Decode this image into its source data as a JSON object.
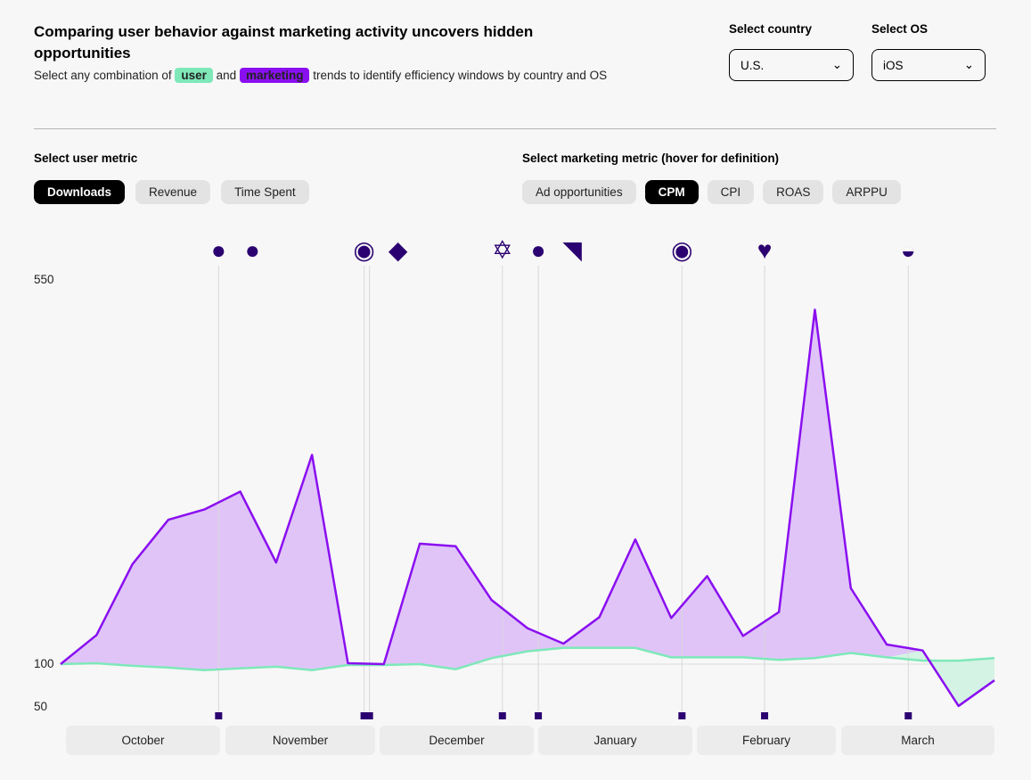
{
  "header": {
    "title": "Comparing user behavior against marketing activity uncovers hidden opportunities",
    "subtitle_pre": "Select any combination of",
    "user_tag": "user",
    "and": "and",
    "marketing_tag": "marketing",
    "subtitle_post": "trends to identify efficiency windows by country and OS"
  },
  "filters": {
    "country_label": "Select country",
    "country_value": "U.S.",
    "os_label": "Select OS",
    "os_value": "iOS"
  },
  "user_metric": {
    "label": "Select user metric",
    "options": [
      "Downloads",
      "Revenue",
      "Time Spent"
    ],
    "selected": "Downloads"
  },
  "marketing_metric": {
    "label": "Select marketing metric (hover for definition)",
    "options": [
      "Ad opportunities",
      "CPM",
      "CPI",
      "ROAS",
      "ARPPU"
    ],
    "selected": "CPM"
  },
  "colors": {
    "user": "#7ee8b9",
    "marketing": "#8a0ff0",
    "event": "#2b0070"
  },
  "chart_data": {
    "type": "area",
    "yticks": [
      "550",
      "100",
      "50"
    ],
    "ylim": [
      50,
      550
    ],
    "months": [
      "October",
      "November",
      "December",
      "January",
      "February",
      "March"
    ],
    "series": [
      {
        "name": "marketing (CPM)",
        "values": [
          100,
          134,
          217,
          269,
          281,
          302,
          219,
          345,
          101,
          100,
          241,
          238,
          175,
          142,
          124,
          155,
          246,
          154,
          203,
          133,
          161,
          515,
          189,
          123,
          116,
          51,
          81
        ]
      },
      {
        "name": "user (Downloads)",
        "values": [
          100,
          101,
          98,
          96,
          93,
          95,
          97,
          93,
          99,
          99,
          100,
          94,
          107,
          115,
          119,
          119,
          119,
          108,
          108,
          108,
          105,
          107,
          113,
          108,
          104,
          104,
          107
        ]
      }
    ],
    "events": [
      {
        "index": 4.4,
        "icons": [
          "apple-icon",
          "pumpkin-icon"
        ]
      },
      {
        "index": 8.45,
        "icons": [
          "turkey-icon"
        ]
      },
      {
        "index": 8.6,
        "icons": [
          "price-tag-icon"
        ]
      },
      {
        "index": 12.3,
        "icons": [
          "star-of-david-icon"
        ]
      },
      {
        "index": 13.3,
        "icons": [
          "ornament-icon",
          "party-popper-icon"
        ]
      },
      {
        "index": 17.3,
        "icons": [
          "lantern-icon"
        ]
      },
      {
        "index": 19.6,
        "icons": [
          "heart-icon"
        ]
      },
      {
        "index": 23.6,
        "icons": [
          "pot-icon"
        ]
      }
    ]
  }
}
